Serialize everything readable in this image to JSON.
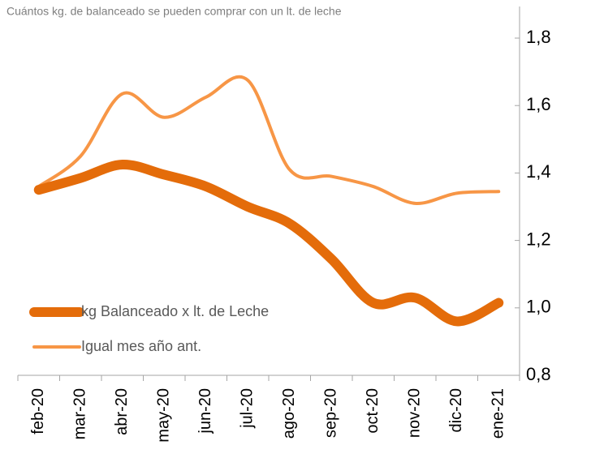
{
  "chart_data": {
    "type": "line",
    "title": "Cuántos kg. de balanceado se pueden comprar con un lt. de leche",
    "categories": [
      "feb-20",
      "mar-20",
      "abr-20",
      "may-20",
      "jun-20",
      "jul-20",
      "ago-20",
      "sep-20",
      "oct-20",
      "nov-20",
      "dic-20",
      "ene-21"
    ],
    "series": [
      {
        "name": "kg Balanceado x lt. de Leche",
        "color": "#e46c0a",
        "values": [
          1.35,
          1.385,
          1.425,
          1.395,
          1.36,
          1.3,
          1.25,
          1.145,
          1.015,
          1.03,
          0.96,
          1.015
        ]
      },
      {
        "name": "Igual mes año ant.",
        "color": "#f79646",
        "values": [
          1.36,
          1.45,
          1.635,
          1.565,
          1.625,
          1.675,
          1.41,
          1.39,
          1.36,
          1.31,
          1.34,
          1.345
        ]
      }
    ],
    "ylim": [
      0.8,
      1.8
    ],
    "yticks": [
      {
        "value": 0.8,
        "label": "0,8"
      },
      {
        "value": 1.0,
        "label": "1,0"
      },
      {
        "value": 1.2,
        "label": "1,2"
      },
      {
        "value": 1.4,
        "label": "1,4"
      },
      {
        "value": 1.6,
        "label": "1,6"
      },
      {
        "value": 1.8,
        "label": "1,8"
      }
    ],
    "legend": "lower left",
    "smooth": true
  }
}
